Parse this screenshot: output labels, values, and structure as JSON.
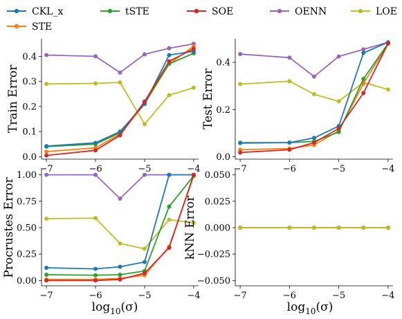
{
  "colors": {
    "CKL_x": "#1f77b4",
    "tSTE": "#2ca02c",
    "SOE": "#d62728",
    "OENN": "#9467bd",
    "LOE": "#bcbd22",
    "STE": "#ff7f0e"
  },
  "legend": [
    {
      "key": "CKL_x",
      "label": "CKL_x"
    },
    {
      "key": "tSTE",
      "label": "tSTE"
    },
    {
      "key": "SOE",
      "label": "SOE"
    },
    {
      "key": "OENN",
      "label": "OENN"
    },
    {
      "key": "LOE",
      "label": "LOE"
    },
    {
      "key": "STE",
      "label": "STE"
    }
  ],
  "xlabel_base": "log",
  "xlabel_sub": "10",
  "xlabel_arg": "(σ)",
  "chart_data": [
    {
      "type": "line",
      "title": "",
      "xlabel": "",
      "ylabel": "Train Error",
      "ylim": [
        -0.01,
        0.47
      ],
      "xlim": [
        -7.1,
        -3.9
      ],
      "xticks": [
        -7,
        -6,
        -5,
        -4
      ],
      "xtick_labels": [
        "−7",
        "−6",
        "−5",
        "−4"
      ],
      "yticks": [
        0.0,
        0.1,
        0.2,
        0.3,
        0.4
      ],
      "ytick_labels": [
        "0.0",
        "0.1",
        "0.2",
        "0.3",
        "0.4"
      ],
      "x": [
        -7,
        -6,
        -5.5,
        -5,
        -4.5,
        -4
      ],
      "series": [
        {
          "key": "OENN",
          "values": [
            0.405,
            0.4,
            0.335,
            0.408,
            0.432,
            0.45
          ]
        },
        {
          "key": "LOE",
          "values": [
            0.29,
            0.292,
            0.296,
            0.13,
            0.245,
            0.275
          ]
        },
        {
          "key": "STE",
          "values": [
            0.02,
            0.035,
            0.09,
            0.21,
            0.37,
            0.44
          ]
        },
        {
          "key": "tSTE",
          "values": [
            0.04,
            0.05,
            0.095,
            0.215,
            0.37,
            0.412
          ]
        },
        {
          "key": "CKL_x",
          "values": [
            0.042,
            0.055,
            0.1,
            0.21,
            0.405,
            0.42
          ]
        },
        {
          "key": "SOE",
          "values": [
            0.005,
            0.025,
            0.085,
            0.22,
            0.38,
            0.43
          ]
        }
      ]
    },
    {
      "type": "line",
      "title": "",
      "xlabel": "",
      "ylabel": "Test Error",
      "ylim": [
        -0.01,
        0.5
      ],
      "xlim": [
        -7.1,
        -3.9
      ],
      "xticks": [
        -7,
        -6,
        -5,
        -4
      ],
      "xtick_labels": [
        "−7",
        "−6",
        "−5",
        "−4"
      ],
      "yticks": [
        0.0,
        0.2,
        0.4
      ],
      "ytick_labels": [
        "0.0",
        "0.2",
        "0.4"
      ],
      "x": [
        -7,
        -6,
        -5.5,
        -5,
        -4.5,
        -4
      ],
      "series": [
        {
          "key": "OENN",
          "values": [
            0.435,
            0.42,
            0.34,
            0.425,
            0.455,
            0.485
          ]
        },
        {
          "key": "LOE",
          "values": [
            0.308,
            0.32,
            0.265,
            0.235,
            0.315,
            0.285
          ]
        },
        {
          "key": "STE",
          "values": [
            0.03,
            0.035,
            0.05,
            0.11,
            0.31,
            0.48
          ]
        },
        {
          "key": "tSTE",
          "values": [
            0.06,
            0.06,
            0.065,
            0.105,
            0.33,
            0.48
          ]
        },
        {
          "key": "CKL_x",
          "values": [
            0.058,
            0.06,
            0.08,
            0.13,
            0.44,
            0.485
          ]
        },
        {
          "key": "SOE",
          "values": [
            0.018,
            0.03,
            0.06,
            0.12,
            0.27,
            0.48
          ]
        }
      ]
    },
    {
      "type": "line",
      "title": "",
      "xlabel": "log10(σ)",
      "ylabel": "Procrustes Error",
      "ylim": [
        -0.05,
        1.05
      ],
      "xlim": [
        -7.1,
        -3.9
      ],
      "xticks": [
        -7,
        -6,
        -5,
        -4
      ],
      "xtick_labels": [
        "−7",
        "−6",
        "−5",
        "−4"
      ],
      "yticks": [
        0.0,
        0.25,
        0.5,
        0.75,
        1.0
      ],
      "ytick_labels": [
        "0.00",
        "0.25",
        "0.50",
        "0.75",
        "1.00"
      ],
      "x": [
        -7,
        -6,
        -5.5,
        -5,
        -4.5,
        -4
      ],
      "series": [
        {
          "key": "OENN",
          "values": [
            1.0,
            1.0,
            0.775,
            1.0,
            1.0,
            1.0
          ]
        },
        {
          "key": "LOE",
          "values": [
            0.585,
            0.59,
            0.35,
            0.3,
            0.575,
            0.545
          ]
        },
        {
          "key": "STE",
          "values": [
            0.01,
            0.01,
            0.02,
            0.05,
            0.32,
            0.99
          ]
        },
        {
          "key": "tSTE",
          "values": [
            0.055,
            0.05,
            0.055,
            0.09,
            0.7,
            0.99
          ]
        },
        {
          "key": "CKL_x",
          "values": [
            0.12,
            0.11,
            0.13,
            0.175,
            1.0,
            1.0
          ]
        },
        {
          "key": "SOE",
          "values": [
            0.0,
            0.0,
            0.01,
            0.07,
            0.31,
            1.0
          ]
        }
      ]
    },
    {
      "type": "line",
      "title": "",
      "xlabel": "log10(σ)",
      "ylabel": "kNN Error",
      "ylim": [
        -0.055,
        0.055
      ],
      "xlim": [
        -7.1,
        -3.9
      ],
      "xticks": [
        -7,
        -6,
        -5,
        -4
      ],
      "xtick_labels": [
        "−7",
        "−6",
        "−5",
        "−4"
      ],
      "yticks": [
        -0.05,
        -0.025,
        0.0,
        0.025,
        0.05
      ],
      "ytick_labels": [
        "−0.050",
        "−0.025",
        "0.000",
        "0.025",
        "0.050"
      ],
      "x": [
        -7,
        -6,
        -5.5,
        -5,
        -4.5,
        -4
      ],
      "series": [
        {
          "key": "CKL_x",
          "values": [
            0,
            0,
            0,
            0,
            0,
            0
          ]
        },
        {
          "key": "tSTE",
          "values": [
            0,
            0,
            0,
            0,
            0,
            0
          ]
        },
        {
          "key": "SOE",
          "values": [
            0,
            0,
            0,
            0,
            0,
            0
          ]
        },
        {
          "key": "OENN",
          "values": [
            0,
            0,
            0,
            0,
            0,
            0
          ]
        },
        {
          "key": "STE",
          "values": [
            0,
            0,
            0,
            0,
            0,
            0
          ]
        },
        {
          "key": "LOE",
          "values": [
            0,
            0,
            0,
            0,
            0,
            0
          ]
        }
      ]
    }
  ]
}
